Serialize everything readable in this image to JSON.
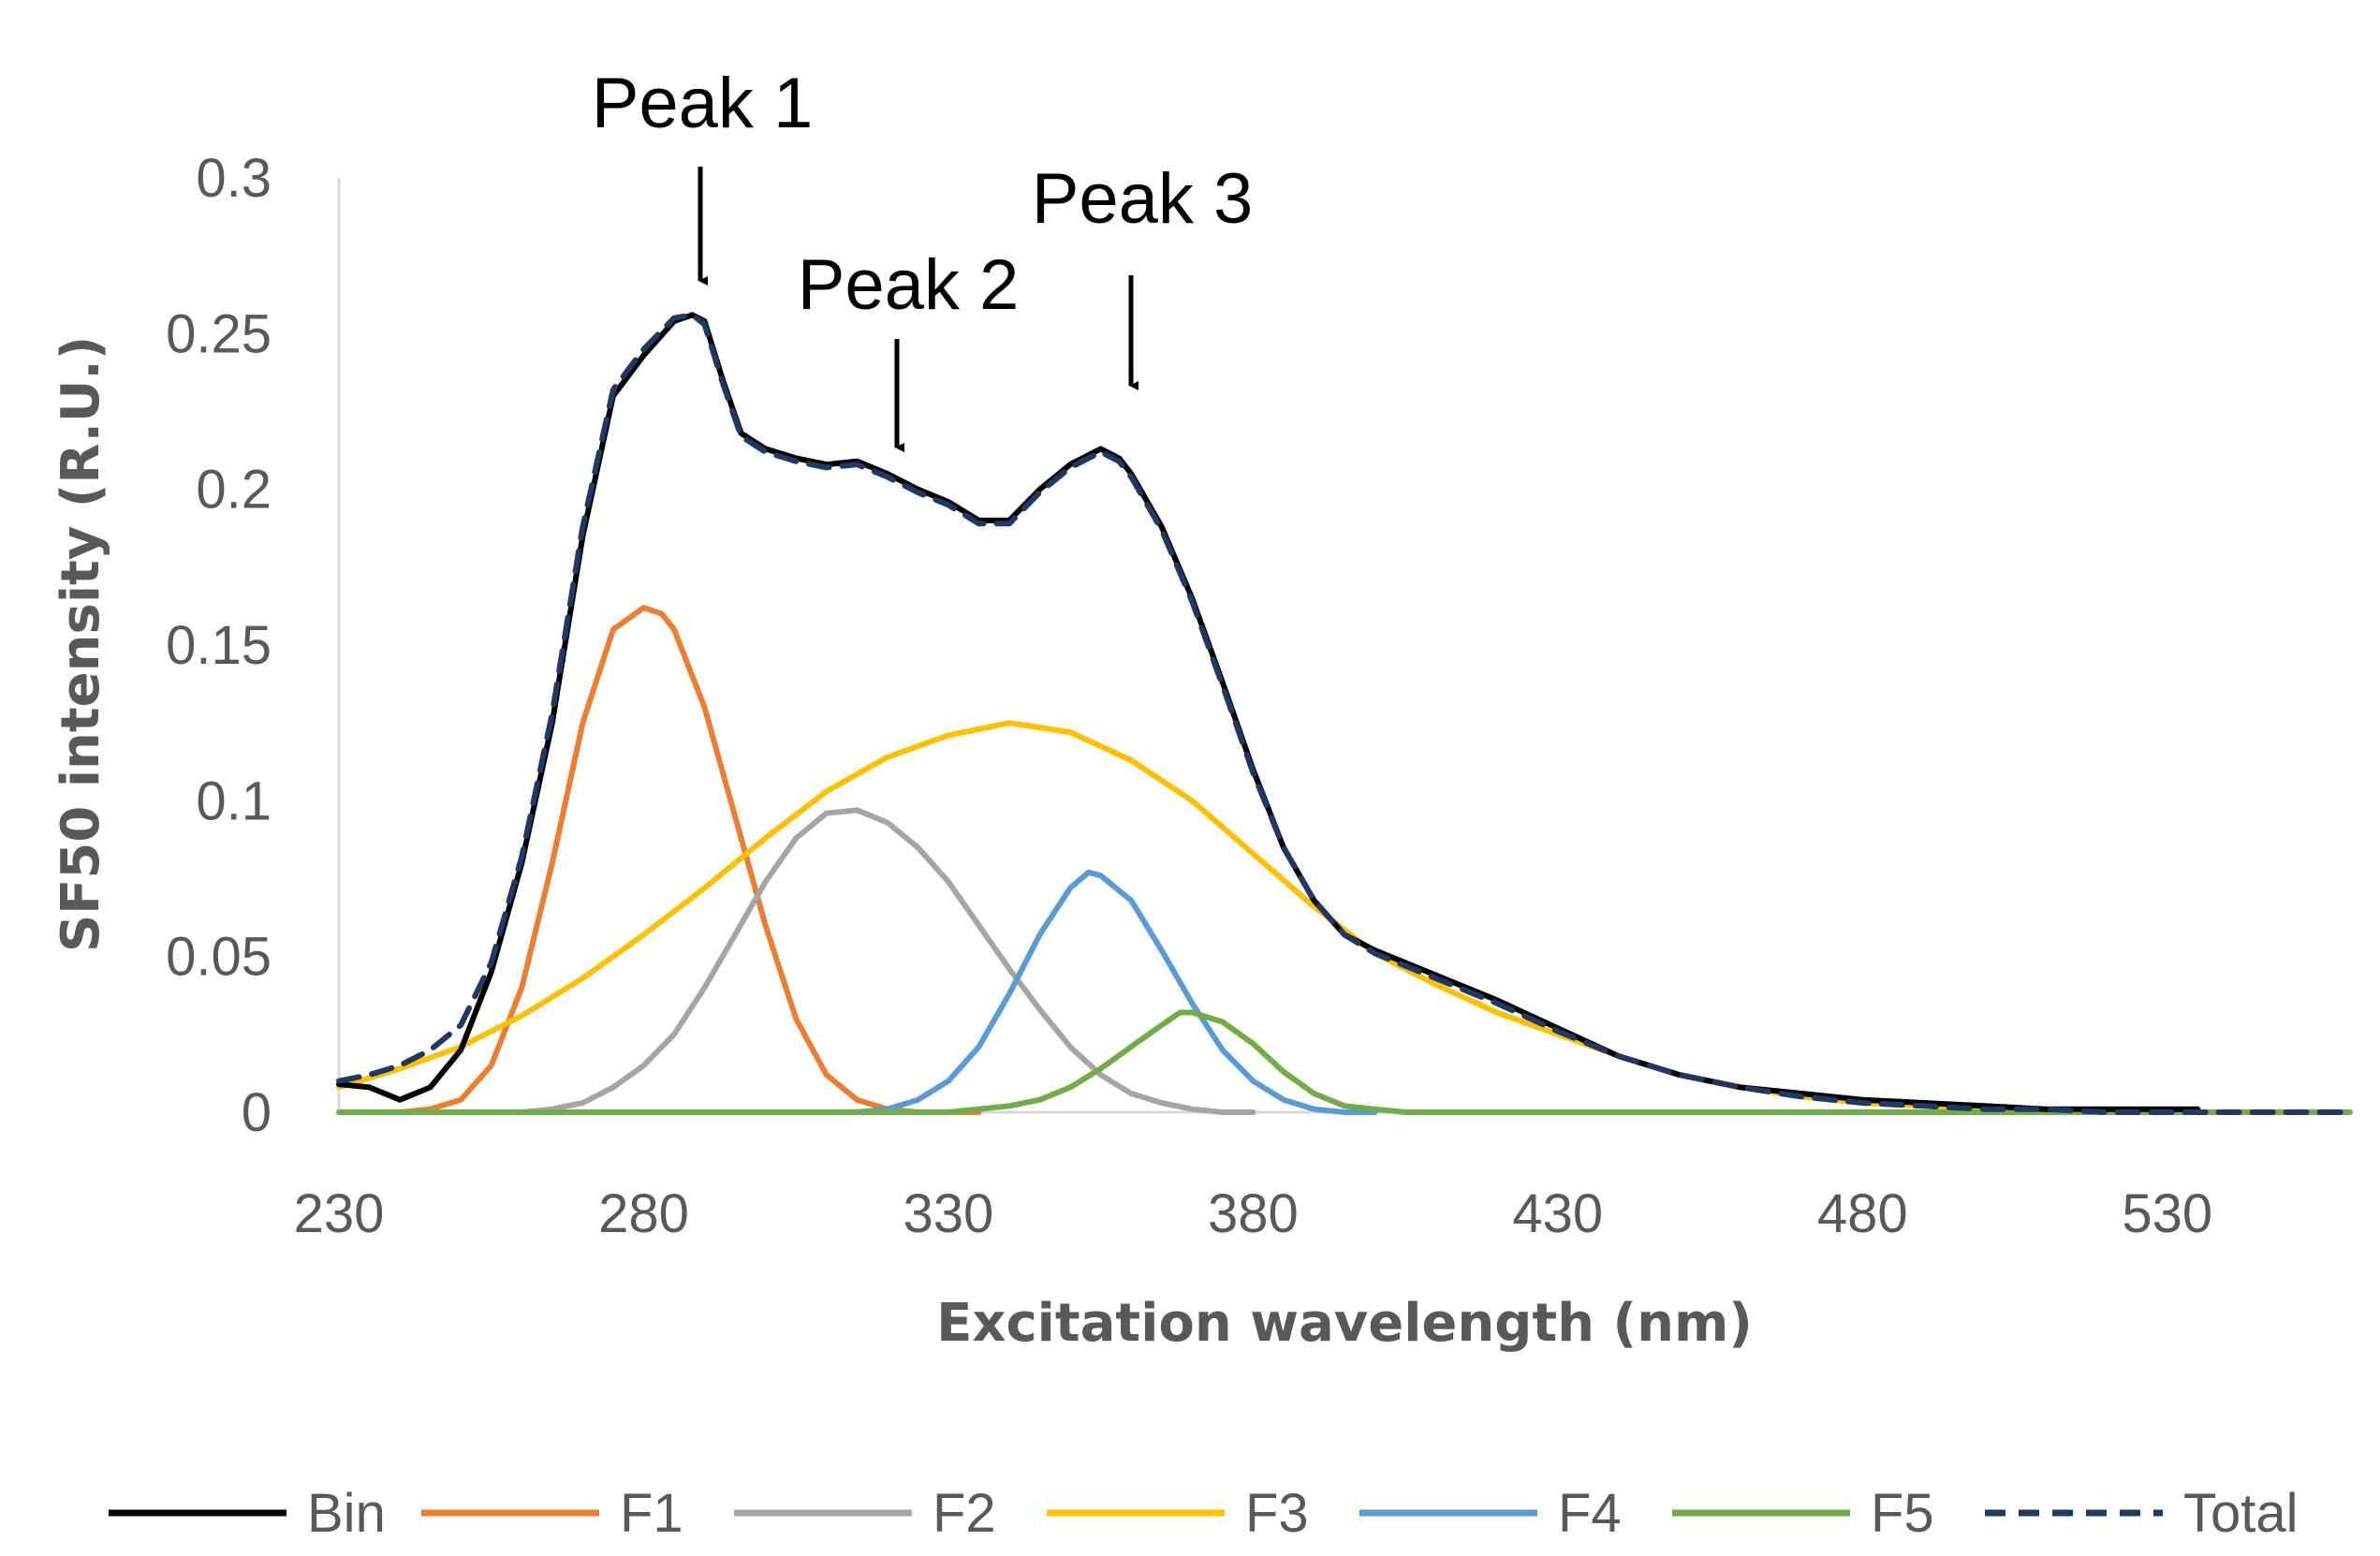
{
  "chart_data": {
    "type": "line",
    "title": "",
    "xlabel": "Excitation wavelength (nm)",
    "ylabel": "SF50 intensity (R.U.)",
    "xlim": [
      230,
      560
    ],
    "ylim": [
      0,
      0.3
    ],
    "xticks": [
      230,
      280,
      330,
      380,
      430,
      480,
      530
    ],
    "xtick_labels": [
      "230",
      "280",
      "330",
      "380",
      "430",
      "480",
      "530"
    ],
    "yticks": [
      0,
      0.05,
      0.1,
      0.15,
      0.2,
      0.25,
      0.3
    ],
    "ytick_labels": [
      "0",
      "0.05",
      "0.1",
      "0.15",
      "0.2",
      "0.25",
      "0.3"
    ],
    "grid": false,
    "legend_position": "bottom",
    "series": [
      {
        "name": "Bin",
        "color": "#000000",
        "dash": false,
        "x": [
          230,
          235,
          240,
          245,
          250,
          255,
          260,
          265,
          270,
          275,
          280,
          285,
          288,
          290,
          293,
          296,
          300,
          305,
          310,
          315,
          320,
          325,
          330,
          335,
          340,
          345,
          350,
          355,
          358,
          360,
          365,
          370,
          375,
          380,
          385,
          390,
          395,
          400,
          410,
          420,
          430,
          440,
          450,
          460,
          470,
          480,
          490,
          500,
          510,
          520,
          530,
          535
        ],
        "y": [
          0.009,
          0.008,
          0.004,
          0.008,
          0.02,
          0.045,
          0.08,
          0.125,
          0.185,
          0.23,
          0.243,
          0.254,
          0.256,
          0.254,
          0.235,
          0.218,
          0.213,
          0.21,
          0.208,
          0.209,
          0.205,
          0.2,
          0.196,
          0.19,
          0.19,
          0.2,
          0.208,
          0.213,
          0.21,
          0.205,
          0.188,
          0.165,
          0.138,
          0.11,
          0.085,
          0.068,
          0.057,
          0.052,
          0.044,
          0.036,
          0.027,
          0.018,
          0.012,
          0.008,
          0.006,
          0.004,
          0.003,
          0.002,
          0.001,
          0.001,
          0.001,
          0.001
        ]
      },
      {
        "name": "F1",
        "color": "#ED7D31",
        "dash": false,
        "x": [
          240,
          245,
          250,
          255,
          260,
          265,
          270,
          275,
          280,
          283,
          285,
          290,
          295,
          300,
          305,
          310,
          315,
          320,
          325,
          330,
          335
        ],
        "y": [
          0.0,
          0.001,
          0.004,
          0.015,
          0.04,
          0.08,
          0.125,
          0.155,
          0.162,
          0.16,
          0.155,
          0.13,
          0.095,
          0.06,
          0.03,
          0.012,
          0.004,
          0.001,
          0.0,
          0.0,
          0.0
        ]
      },
      {
        "name": "F2",
        "color": "#A5A5A5",
        "dash": false,
        "x": [
          260,
          265,
          270,
          275,
          280,
          285,
          290,
          295,
          300,
          305,
          310,
          315,
          320,
          325,
          330,
          335,
          340,
          345,
          350,
          355,
          360,
          365,
          370,
          375,
          380
        ],
        "y": [
          0.0,
          0.001,
          0.003,
          0.008,
          0.015,
          0.025,
          0.04,
          0.057,
          0.074,
          0.088,
          0.096,
          0.097,
          0.093,
          0.085,
          0.074,
          0.06,
          0.046,
          0.033,
          0.021,
          0.012,
          0.006,
          0.003,
          0.001,
          0.0,
          0.0
        ]
      },
      {
        "name": "F3",
        "color": "#FFC000",
        "dash": false,
        "x": [
          230,
          240,
          250,
          260,
          270,
          280,
          290,
          300,
          310,
          320,
          330,
          340,
          350,
          360,
          370,
          380,
          390,
          400,
          410,
          420,
          430,
          440,
          450,
          460,
          470,
          480,
          490,
          500,
          510,
          520,
          530,
          535
        ],
        "y": [
          0.008,
          0.014,
          0.021,
          0.031,
          0.043,
          0.057,
          0.072,
          0.088,
          0.103,
          0.114,
          0.121,
          0.125,
          0.122,
          0.113,
          0.1,
          0.083,
          0.066,
          0.051,
          0.041,
          0.032,
          0.025,
          0.018,
          0.012,
          0.008,
          0.005,
          0.003,
          0.002,
          0.001,
          0.001,
          0.0,
          0.0,
          0.0
        ]
      },
      {
        "name": "F4",
        "color": "#5B9BD5",
        "dash": false,
        "x": [
          315,
          320,
          325,
          330,
          335,
          340,
          345,
          350,
          353,
          355,
          360,
          365,
          370,
          375,
          380,
          385,
          390,
          395,
          400
        ],
        "y": [
          0.0,
          0.001,
          0.004,
          0.01,
          0.021,
          0.038,
          0.057,
          0.072,
          0.077,
          0.076,
          0.068,
          0.052,
          0.035,
          0.02,
          0.01,
          0.004,
          0.001,
          0.0,
          0.0
        ]
      },
      {
        "name": "F5",
        "color": "#70AD47",
        "dash": false,
        "x": [
          230,
          330,
          335,
          340,
          345,
          350,
          355,
          360,
          365,
          368,
          370,
          375,
          380,
          385,
          390,
          395,
          400,
          405,
          560
        ],
        "y": [
          0.0,
          0.0,
          0.001,
          0.002,
          0.004,
          0.008,
          0.014,
          0.021,
          0.028,
          0.032,
          0.032,
          0.029,
          0.022,
          0.013,
          0.006,
          0.002,
          0.001,
          0.0,
          0.0
        ]
      },
      {
        "name": "Total",
        "color": "#1F3864",
        "dash": true,
        "x": [
          230,
          235,
          240,
          245,
          250,
          255,
          260,
          265,
          270,
          275,
          280,
          285,
          288,
          290,
          293,
          296,
          300,
          305,
          310,
          315,
          320,
          325,
          330,
          335,
          340,
          345,
          350,
          355,
          358,
          360,
          365,
          370,
          375,
          380,
          385,
          390,
          395,
          400,
          410,
          420,
          430,
          440,
          450,
          460,
          470,
          480,
          490,
          500,
          510,
          520,
          530,
          540,
          550,
          560
        ],
        "y": [
          0.01,
          0.012,
          0.015,
          0.02,
          0.028,
          0.048,
          0.082,
          0.128,
          0.188,
          0.232,
          0.245,
          0.255,
          0.256,
          0.253,
          0.234,
          0.217,
          0.212,
          0.209,
          0.207,
          0.208,
          0.204,
          0.199,
          0.195,
          0.189,
          0.189,
          0.199,
          0.207,
          0.212,
          0.209,
          0.204,
          0.187,
          0.164,
          0.137,
          0.109,
          0.085,
          0.068,
          0.057,
          0.051,
          0.043,
          0.035,
          0.026,
          0.018,
          0.012,
          0.008,
          0.005,
          0.003,
          0.002,
          0.001,
          0.001,
          0.0,
          0.0,
          0.0,
          0.0,
          0.0
        ]
      }
    ],
    "annotations": [
      {
        "id": "peak1",
        "text": "Peak 1",
        "x": 288,
        "y": 0.256
      },
      {
        "id": "peak2",
        "text": "Peak 2",
        "x": 318,
        "y": 0.208
      },
      {
        "id": "peak3",
        "text": "Peak 3",
        "x": 355,
        "y": 0.213
      }
    ]
  }
}
